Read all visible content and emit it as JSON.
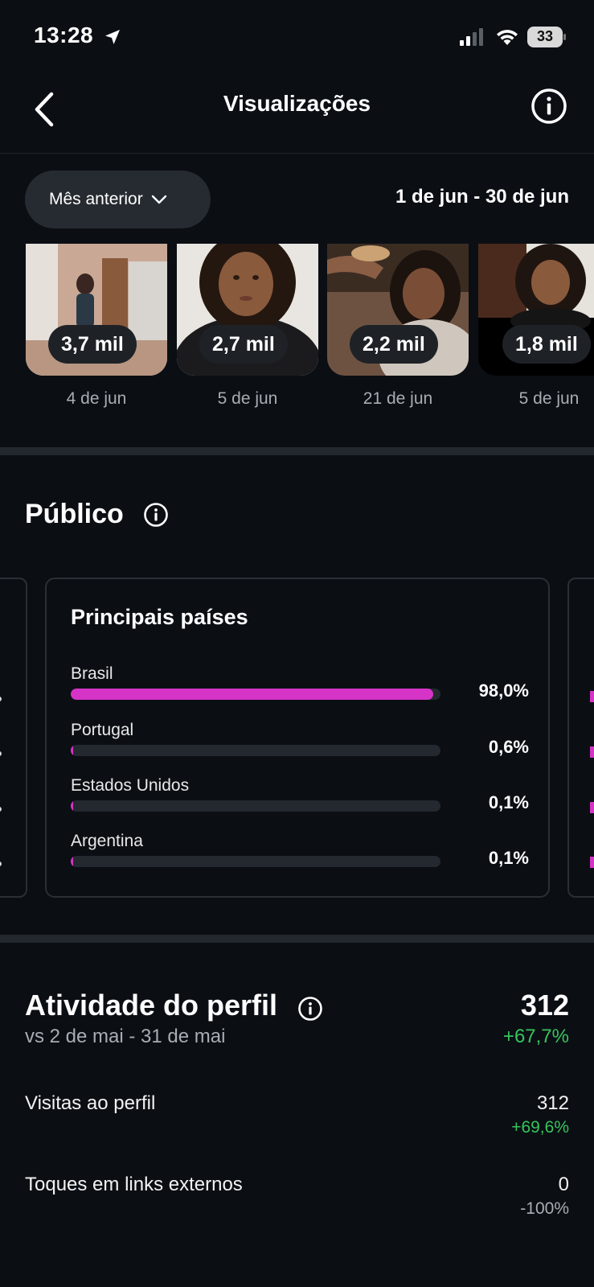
{
  "status_bar": {
    "time": "13:28",
    "battery": "33",
    "icons": [
      "location-arrow-icon",
      "signal-icon",
      "wifi-icon",
      "battery-icon"
    ]
  },
  "nav": {
    "title": "Visualizações",
    "icons": [
      "back-chevron-icon",
      "info-icon"
    ]
  },
  "filter": {
    "period_label": "Mês anterior",
    "date_range": "1 de jun - 30 de jun"
  },
  "thumbnails": [
    {
      "views": "3,7 mil",
      "date": "4 de jun"
    },
    {
      "views": "2,7 mil",
      "date": "5 de jun"
    },
    {
      "views": "2,2 mil",
      "date": "21 de jun"
    },
    {
      "views": "1,8 mil",
      "date": "5 de jun"
    }
  ],
  "audience": {
    "title": "Público",
    "card_title": "Principais países",
    "bar_color": "#d534c6",
    "countries": [
      {
        "name": "Brasil",
        "percent_label": "98,0%",
        "percent": 98.0
      },
      {
        "name": "Portugal",
        "percent_label": "0,6%",
        "percent": 0.6
      },
      {
        "name": "Estados Unidos",
        "percent_label": "0,1%",
        "percent": 0.1
      },
      {
        "name": "Argentina",
        "percent_label": "0,1%",
        "percent": 0.1
      }
    ]
  },
  "activity": {
    "title": "Atividade do perfil",
    "comparison": "vs 2 de mai - 31 de mai",
    "total": "312",
    "total_delta": "+67,7%",
    "positive_color": "#37c45d",
    "neutral_color": "#a8adb4",
    "metrics": [
      {
        "label": "Visitas ao perfil",
        "value": "312",
        "delta": "+69,6%"
      },
      {
        "label": "Toques em links externos",
        "value": "0",
        "delta": "-100%"
      }
    ]
  }
}
